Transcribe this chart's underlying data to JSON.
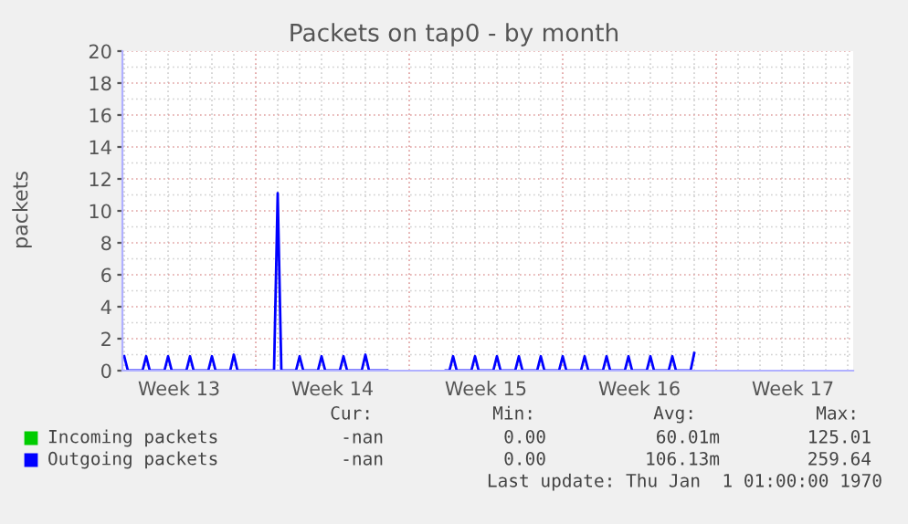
{
  "chart_data": {
    "type": "line",
    "title": "Packets on tap0 - by month",
    "ylabel": "packets",
    "categories": [
      null,
      null,
      null,
      null,
      null,
      null,
      null,
      null,
      null,
      null,
      null,
      null,
      null,
      null,
      null,
      "Week 13",
      null,
      null,
      null,
      null,
      null,
      null,
      null,
      null,
      null,
      null,
      null,
      null,
      null,
      null,
      null,
      null,
      null,
      null,
      null,
      null,
      null,
      null,
      null,
      null,
      null,
      null,
      null,
      null,
      null,
      null,
      null,
      null,
      null,
      null,
      null,
      null,
      null,
      null,
      null,
      null,
      null,
      "Week 14",
      null,
      null,
      null,
      null,
      null,
      null,
      null,
      null,
      null,
      null,
      null,
      null,
      null,
      null,
      null,
      null,
      null,
      null,
      null,
      null,
      null,
      null,
      null,
      null,
      null,
      null,
      null,
      null,
      null,
      null,
      null,
      null,
      null,
      null,
      null,
      null,
      null,
      null,
      null,
      null,
      null,
      "Week 15",
      null,
      null,
      null,
      null,
      null,
      null,
      null,
      null,
      null,
      null,
      null,
      null,
      null,
      null,
      null,
      null,
      null,
      null,
      null,
      null,
      null,
      null,
      null,
      null,
      null,
      null,
      null,
      null,
      null,
      null,
      null,
      null,
      null,
      null,
      null,
      null,
      null,
      null,
      null,
      null,
      null,
      "Week 16",
      null,
      null,
      null,
      null,
      null,
      null,
      null,
      null,
      null,
      null,
      null,
      null,
      null,
      null,
      null,
      null,
      null,
      null,
      null,
      null,
      null,
      null,
      null,
      null,
      null,
      null,
      null,
      null,
      null,
      null,
      null,
      null,
      null,
      null,
      null,
      null,
      null,
      null,
      null,
      null,
      null,
      "Week 17",
      null,
      null,
      null,
      null,
      null,
      null,
      null,
      null,
      null,
      null,
      null,
      null,
      null,
      null,
      null,
      null
    ],
    "ylim": [
      0,
      20
    ],
    "yticks": [
      0,
      2,
      4,
      6,
      8,
      10,
      12,
      14,
      16,
      18,
      20
    ],
    "grid": true,
    "legend": "bottom",
    "series": [
      {
        "name": "Incoming packets",
        "color": "#00cc00",
        "values": [
          null,
          null,
          null,
          null,
          null,
          null,
          null,
          null,
          null,
          null,
          null,
          null,
          null,
          null,
          null,
          null,
          null,
          null,
          null,
          null,
          null,
          null,
          null,
          null,
          null,
          null,
          null,
          null,
          null,
          null,
          null,
          null,
          null,
          null,
          null,
          null,
          null,
          null,
          null,
          null,
          null,
          null,
          null,
          null,
          null,
          null,
          null,
          null,
          null,
          null,
          null,
          null,
          null,
          null,
          null,
          null,
          null,
          null,
          null,
          null,
          null,
          null,
          null,
          null,
          null,
          null,
          null,
          null,
          null,
          null,
          null,
          null,
          null,
          null,
          null,
          null,
          null,
          null,
          null,
          null,
          null,
          null,
          null,
          null,
          null,
          null,
          null,
          null,
          null,
          null,
          null,
          null,
          null,
          null,
          null,
          null,
          null,
          null,
          null,
          null,
          null,
          null,
          null,
          null,
          null,
          null,
          null,
          null,
          null,
          null,
          null,
          null,
          null,
          null,
          null,
          null,
          null,
          null,
          null,
          null,
          null,
          null,
          null,
          null,
          null,
          null,
          null,
          null,
          null,
          null,
          null,
          null,
          null,
          null,
          null,
          null,
          null,
          null,
          null,
          null,
          null,
          null,
          null,
          null,
          null,
          null,
          null,
          null,
          null,
          null,
          null,
          null,
          null,
          null,
          null,
          null,
          null,
          null,
          null,
          null,
          null,
          null,
          null,
          null,
          null,
          null,
          null,
          null,
          null,
          null,
          null,
          null,
          null,
          null,
          null,
          null,
          null,
          null,
          null,
          null,
          null,
          null,
          null,
          null,
          null,
          null,
          null,
          null,
          null,
          null,
          null,
          null,
          null,
          null,
          null,
          null,
          null,
          null,
          null,
          null
        ]
      },
      {
        "name": "Outgoing packets",
        "color": "#0000ff",
        "values": [
          0.9,
          0,
          0,
          0,
          0,
          0,
          0.9,
          0,
          0,
          0,
          0,
          0,
          0.9,
          0,
          0,
          0,
          0,
          0,
          0.9,
          0,
          0,
          0,
          0,
          0,
          0.9,
          0,
          0,
          0,
          0,
          0,
          1.0,
          0,
          0,
          0,
          0,
          0,
          0,
          0,
          0,
          0,
          0,
          0,
          11.1,
          0,
          0,
          0,
          0,
          0,
          0.9,
          0,
          0,
          0,
          0,
          0,
          0.9,
          0,
          0,
          0,
          0,
          0,
          0.9,
          0,
          0,
          0,
          0,
          0,
          1.0,
          0,
          0,
          0,
          0,
          0,
          0,
          null,
          null,
          null,
          null,
          null,
          null,
          null,
          null,
          null,
          null,
          null,
          null,
          null,
          null,
          null,
          0,
          0,
          0.9,
          0,
          0,
          0,
          0,
          0,
          0.9,
          0,
          0,
          0,
          0,
          0,
          0.9,
          0,
          0,
          0,
          0,
          0,
          0.9,
          0,
          0,
          0,
          0,
          0,
          0.9,
          0,
          0,
          0,
          0,
          0,
          0.9,
          0,
          0,
          0,
          0,
          0,
          0.9,
          0,
          0,
          0,
          0,
          0,
          0.9,
          0,
          0,
          0,
          0,
          0,
          0.9,
          0,
          0,
          0,
          0,
          0,
          0.9,
          0,
          0,
          0,
          0,
          0,
          0.9,
          0,
          0,
          0,
          0,
          0,
          1.1,
          null,
          null,
          null,
          null,
          null,
          null,
          null,
          null,
          null,
          null,
          null,
          null,
          null,
          null,
          null,
          null,
          null,
          null,
          null,
          null,
          null,
          null,
          null,
          null,
          null,
          null,
          null,
          null,
          null,
          null,
          null,
          null,
          null,
          null,
          null,
          null,
          null,
          null,
          null,
          null,
          null,
          null,
          null
        ]
      }
    ],
    "annotations": [
      "Cur:",
      "Min:",
      "Avg:",
      "Max:",
      "-nan",
      "0.00",
      "60.01m",
      "125.01",
      "-nan",
      "0.00",
      "106.13m",
      "259.64",
      "Last update: Thu Jan  1 01:00:00 1970"
    ]
  }
}
